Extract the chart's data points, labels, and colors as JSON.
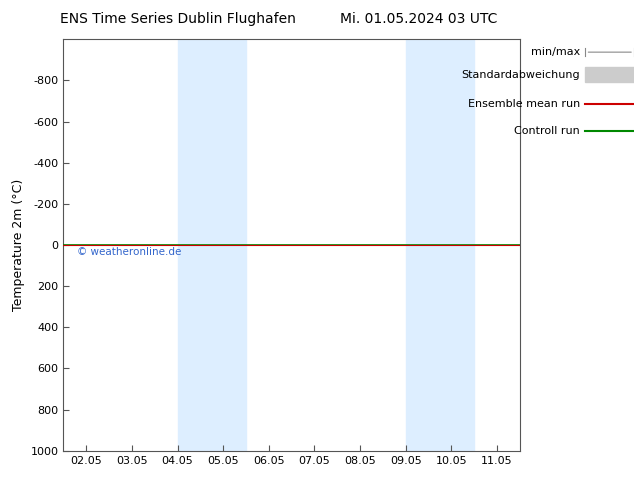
{
  "title": "ENS Time Series Dublin Flughafen",
  "title2": "Mi. 01.05.2024 03 UTC",
  "ylabel": "Temperature 2m (°C)",
  "ylim_top": -1000,
  "ylim_bottom": 1000,
  "yticks": [
    -800,
    -600,
    -400,
    -200,
    0,
    200,
    400,
    600,
    800,
    1000
  ],
  "xtick_labels": [
    "02.05",
    "03.05",
    "04.05",
    "05.05",
    "06.05",
    "07.05",
    "08.05",
    "09.05",
    "10.05",
    "11.05"
  ],
  "xtick_positions": [
    0,
    1,
    2,
    3,
    4,
    5,
    6,
    7,
    8,
    9
  ],
  "x_min": -0.5,
  "x_max": 9.5,
  "shade_bands": [
    {
      "x_start": 2.0,
      "x_end": 3.5
    },
    {
      "x_start": 7.0,
      "x_end": 8.5
    }
  ],
  "shade_color": "#ddeeff",
  "green_line_color": "#008800",
  "red_line_color": "#cc0000",
  "watermark": "© weatheronline.de",
  "watermark_color": "#3366cc",
  "bg_color": "#ffffff",
  "legend_minmax_color": "#888888",
  "legend_std_color": "#cccccc",
  "font_size_title": 10,
  "font_size_axis": 9,
  "font_size_tick": 8,
  "font_size_legend": 8
}
